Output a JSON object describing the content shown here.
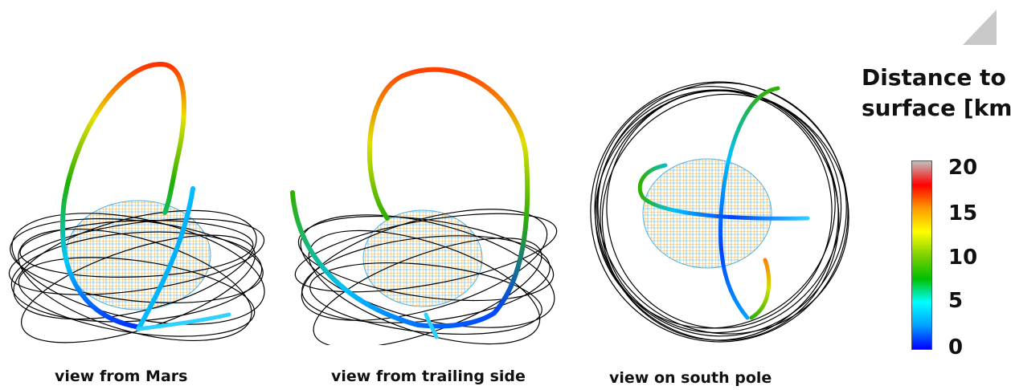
{
  "panels": [
    {
      "caption": "view from Mars"
    },
    {
      "caption": "view from trailing side"
    },
    {
      "caption": "view on south pole"
    }
  ],
  "legend": {
    "title_line1": "Distance to",
    "title_line2": "surface [km]",
    "ticks": [
      "20",
      "15",
      "10",
      "5",
      "0"
    ],
    "colors": [
      "#0000ff",
      "#00a0ff",
      "#00ffff",
      "#00c000",
      "#80d000",
      "#ffff00",
      "#ff9900",
      "#ff0000",
      "#c0c0c0"
    ]
  },
  "colors": {
    "orbit": "#000000",
    "grid_a": "#f0a030",
    "grid_b": "#50b0e0",
    "body_fill": "#e8eef5"
  }
}
